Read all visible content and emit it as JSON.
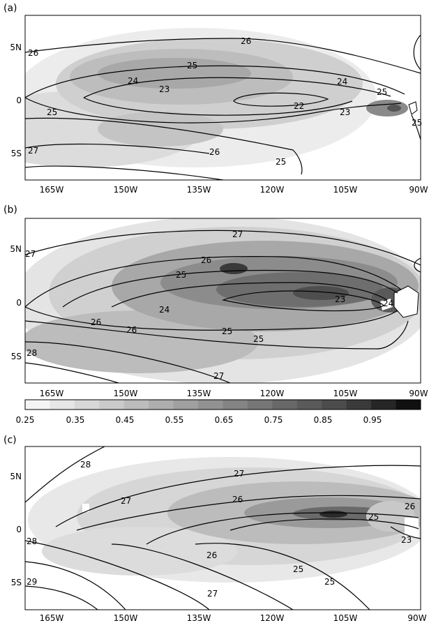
{
  "panels": [
    {
      "label": "(a)",
      "contour_labels": [
        "26",
        "26",
        "25",
        "24",
        "24",
        "25",
        "23",
        "22",
        "23",
        "25",
        "25",
        "25",
        "27",
        "26"
      ]
    },
    {
      "label": "(b)",
      "contour_labels": [
        "27",
        "27",
        "26",
        "25",
        "24",
        "23",
        "24",
        "26",
        "26",
        "25",
        "25",
        "28",
        "27"
      ]
    },
    {
      "label": "(c)",
      "contour_labels": [
        "28",
        "27",
        "27",
        "26",
        "25",
        "26",
        "23",
        "28",
        "26",
        "25",
        "29",
        "27",
        "25"
      ]
    }
  ],
  "lat_labels": [
    "5N",
    "0",
    "5S"
  ],
  "lon_labels": [
    "165W",
    "150W",
    "135W",
    "120W",
    "105W",
    "90W"
  ],
  "colorbar": {
    "tick_labels": [
      "0.25",
      "0.35",
      "0.45",
      "0.55",
      "0.65",
      "0.75",
      "0.85",
      "0.95"
    ],
    "colors": [
      "#f4f4f4",
      "#e6e6e6",
      "#d8d8d8",
      "#cacaca",
      "#bcbcbc",
      "#aeaeae",
      "#a0a0a0",
      "#929292",
      "#848484",
      "#767676",
      "#686868",
      "#5a5a5a",
      "#4c4c4c",
      "#3a3a3a",
      "#262626",
      "#101010"
    ]
  }
}
